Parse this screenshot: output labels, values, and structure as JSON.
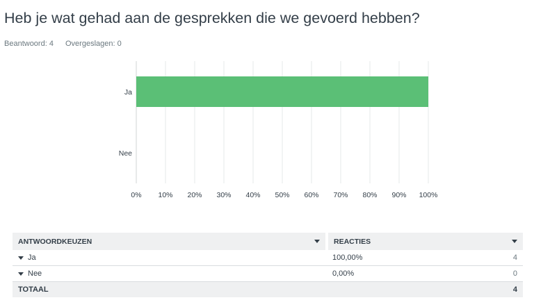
{
  "question": "Heb je wat gehad aan de gesprekken die we gevoerd hebben?",
  "meta": {
    "answered": "Beantwoord: 4",
    "skipped": "Overgeslagen: 0"
  },
  "colors": {
    "bar": "#5bbf76",
    "grid": "#e6e8e9",
    "axis": "#d0d4d6"
  },
  "chart_data": {
    "type": "bar",
    "orientation": "horizontal",
    "categories": [
      "Ja",
      "Nee"
    ],
    "values": [
      100,
      0
    ],
    "xlim": [
      0,
      100
    ],
    "ticks": [
      "0%",
      "10%",
      "20%",
      "30%",
      "40%",
      "50%",
      "60%",
      "70%",
      "80%",
      "90%",
      "100%"
    ],
    "grid": true
  },
  "table": {
    "headers": {
      "choice": "ANTWOORDKEUZEN",
      "responses": "REACTIES"
    },
    "rows": [
      {
        "label": "Ja",
        "percent": "100,00%",
        "count": "4"
      },
      {
        "label": "Nee",
        "percent": "0,00%",
        "count": "0"
      }
    ],
    "total": {
      "label": "TOTAAL",
      "count": "4"
    }
  }
}
